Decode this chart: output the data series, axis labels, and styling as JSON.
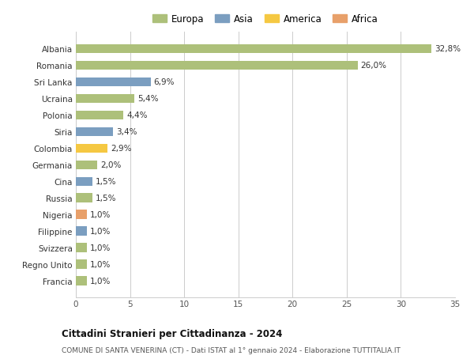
{
  "categories": [
    "Albania",
    "Romania",
    "Sri Lanka",
    "Ucraina",
    "Polonia",
    "Siria",
    "Colombia",
    "Germania",
    "Cina",
    "Russia",
    "Nigeria",
    "Filippine",
    "Svizzera",
    "Regno Unito",
    "Francia"
  ],
  "values": [
    32.8,
    26.0,
    6.9,
    5.4,
    4.4,
    3.4,
    2.9,
    2.0,
    1.5,
    1.5,
    1.0,
    1.0,
    1.0,
    1.0,
    1.0
  ],
  "labels": [
    "32,8%",
    "26,0%",
    "6,9%",
    "5,4%",
    "4,4%",
    "3,4%",
    "2,9%",
    "2,0%",
    "1,5%",
    "1,5%",
    "1,0%",
    "1,0%",
    "1,0%",
    "1,0%",
    "1,0%"
  ],
  "continents": [
    "Europa",
    "Europa",
    "Asia",
    "Europa",
    "Europa",
    "Asia",
    "America",
    "Europa",
    "Asia",
    "Europa",
    "Africa",
    "Asia",
    "Europa",
    "Europa",
    "Europa"
  ],
  "continent_colors": {
    "Europa": "#adc07a",
    "Asia": "#7b9ec0",
    "America": "#f5c842",
    "Africa": "#e8a06a"
  },
  "legend_order": [
    "Europa",
    "Asia",
    "America",
    "Africa"
  ],
  "title": "Cittadini Stranieri per Cittadinanza - 2024",
  "subtitle": "COMUNE DI SANTA VENERINA (CT) - Dati ISTAT al 1° gennaio 2024 - Elaborazione TUTTITALIA.IT",
  "xlim": [
    0,
    35
  ],
  "xticks": [
    0,
    5,
    10,
    15,
    20,
    25,
    30,
    35
  ],
  "background_color": "#ffffff",
  "grid_color": "#cccccc",
  "bar_height": 0.55
}
